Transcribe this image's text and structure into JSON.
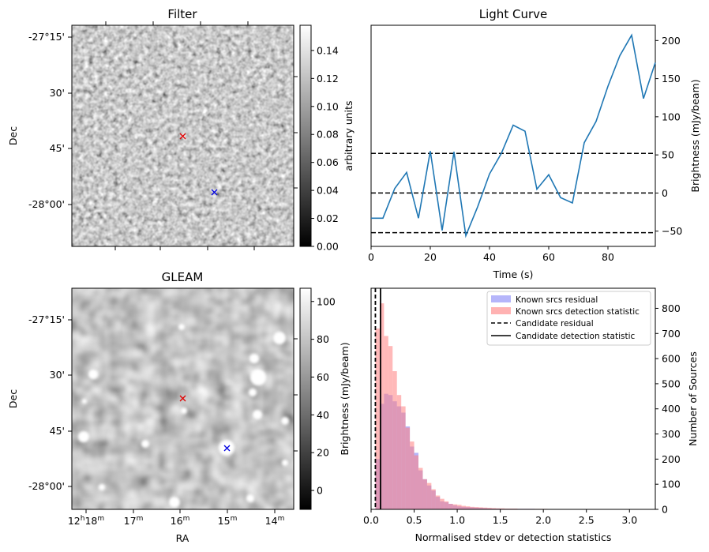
{
  "colors": {
    "line": "#1f77b4",
    "known_residual": "#6b6bf5",
    "known_detection": "#ff7f7f",
    "red_marker": "#e00000",
    "blue_marker": "#0000e0"
  },
  "panels": {
    "filter": {
      "title": "Filter",
      "ylabel": "Dec",
      "dec_ticks": [
        "-27°15'",
        "30'",
        "45'",
        "-28°00'"
      ],
      "colorbar_label": "arbitrary units",
      "colorbar_ticks": [
        "0.00",
        "0.02",
        "0.04",
        "0.06",
        "0.08",
        "0.10",
        "0.12",
        "0.14"
      ],
      "colorbar_range": [
        0,
        0.158
      ]
    },
    "gleam": {
      "title": "GLEAM",
      "ylabel": "Dec",
      "xlabel": "RA",
      "dec_ticks": [
        "-27°15'",
        "30'",
        "45'",
        "-28°00'"
      ],
      "ra_ticks": [
        {
          "h": "12",
          "hs": "h",
          "m": "18",
          "ms": "m"
        },
        {
          "h": "",
          "hs": "",
          "m": "17",
          "ms": "m"
        },
        {
          "h": "",
          "hs": "",
          "m": "16",
          "ms": "m"
        },
        {
          "h": "",
          "hs": "",
          "m": "15",
          "ms": "m"
        },
        {
          "h": "",
          "hs": "",
          "m": "14",
          "ms": "m"
        }
      ],
      "colorbar_label": "Brightness (mJy/beam)",
      "colorbar_ticks": [
        "0",
        "20",
        "40",
        "60",
        "80",
        "100"
      ],
      "colorbar_range": [
        -10,
        107
      ]
    }
  },
  "chart_data": [
    {
      "type": "line",
      "title": "Light Curve",
      "xlabel": "Time (s)",
      "ylabel": "Brightness (mJy/beam)",
      "xlim": [
        0,
        96
      ],
      "ylim": [
        -70,
        220
      ],
      "x_ticks": [
        0,
        20,
        40,
        60,
        80
      ],
      "y_ticks": [
        -50,
        0,
        50,
        100,
        150,
        200
      ],
      "series": [
        {
          "x": [
            0,
            4,
            8,
            12,
            16,
            20,
            24,
            28,
            32,
            36,
            40,
            44,
            48,
            52,
            56,
            60,
            64,
            68,
            72,
            76,
            80,
            84,
            88,
            92,
            96
          ],
          "y": [
            -33,
            -33,
            6,
            27,
            -33,
            55,
            -49,
            54,
            -56,
            -18,
            25,
            52,
            89,
            81,
            5,
            24,
            -6,
            -13,
            66,
            94,
            140,
            180,
            207,
            124,
            171
          ]
        }
      ],
      "hlines": [
        52,
        0,
        -52
      ]
    },
    {
      "type": "histogram",
      "xlabel": "Normalised stdev or detection statistics",
      "ylabel": "Number of Sources",
      "xlim": [
        0,
        3.3
      ],
      "ylim": [
        0,
        880
      ],
      "x_ticks": [
        "0.0",
        "0.5",
        "1.0",
        "1.5",
        "2.0",
        "2.5",
        "3.0"
      ],
      "y_ticks": [
        0,
        100,
        200,
        300,
        400,
        500,
        600,
        700,
        800
      ],
      "bin_edges_start": 0.0,
      "bin_width": 0.05,
      "series": [
        {
          "name": "Known srcs residual",
          "values": [
            0,
            200,
            420,
            460,
            455,
            430,
            410,
            385,
            330,
            250,
            225,
            155,
            120,
            95,
            75,
            50,
            32,
            28,
            22,
            16,
            12,
            10,
            9,
            8,
            7,
            6,
            5,
            4,
            3,
            3,
            2,
            2,
            2,
            2,
            2,
            2,
            2,
            2,
            1,
            1,
            1,
            1,
            1,
            1,
            1,
            1,
            1,
            1,
            1,
            1,
            1,
            1,
            1,
            1,
            1,
            0,
            0,
            0,
            0,
            0,
            0,
            0,
            0,
            0,
            0
          ]
        },
        {
          "name": "Known srcs detection statistic",
          "values": [
            0,
            720,
            820,
            690,
            650,
            550,
            455,
            410,
            325,
            270,
            215,
            165,
            120,
            105,
            80,
            55,
            42,
            32,
            22,
            20,
            18,
            14,
            12,
            10,
            9,
            8,
            7,
            6,
            5,
            4,
            4,
            3,
            3,
            3,
            2,
            2,
            2,
            2,
            2,
            2,
            2,
            1,
            1,
            1,
            1,
            1,
            1,
            1,
            1,
            1,
            1,
            1,
            1,
            1,
            1,
            0,
            0,
            0,
            0,
            0,
            0,
            0,
            0,
            0,
            0
          ]
        }
      ],
      "vlines": [
        {
          "name": "Candidate residual",
          "x": 0.05,
          "style": "dashed"
        },
        {
          "name": "Candidate detection statistic",
          "x": 0.11,
          "style": "solid"
        }
      ]
    }
  ]
}
